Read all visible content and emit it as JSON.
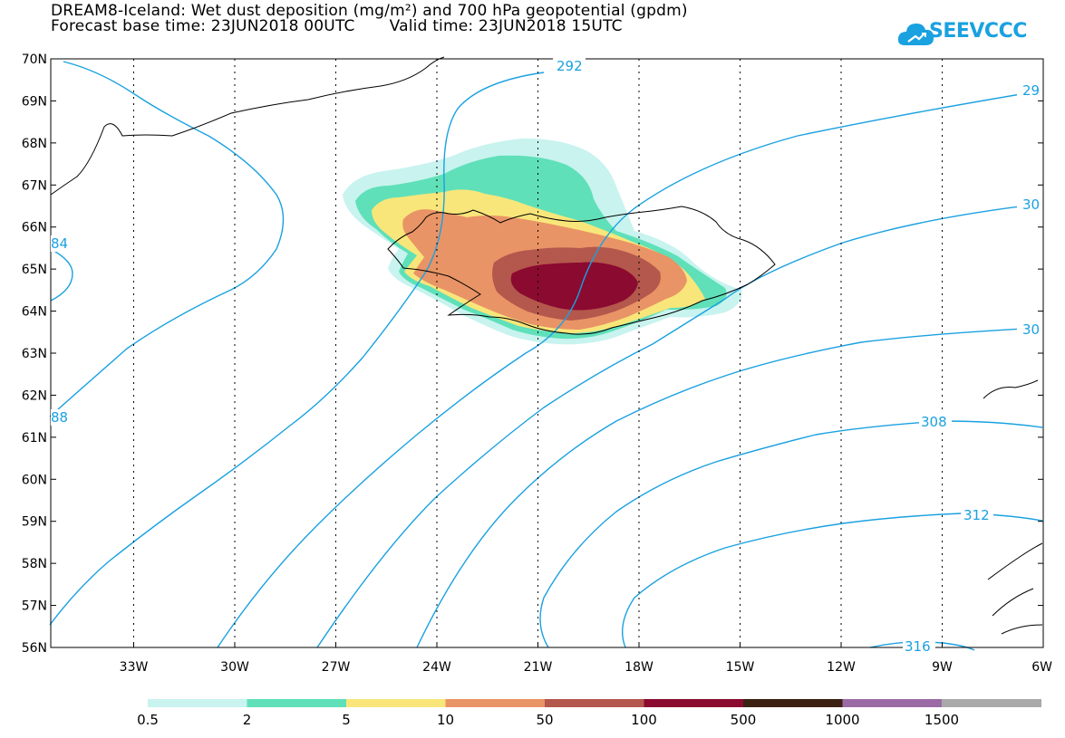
{
  "title": {
    "line1": "DREAM8-Iceland: Wet dust deposition (mg/m²) and 700 hPa geopotential (gpdm)",
    "base_time": "Forecast base time: 23JUN2018 00UTC",
    "valid_time": "Valid time: 23JUN2018 15UTC"
  },
  "logo": {
    "text": "SEEVCCC",
    "icon": "cloud-icon",
    "color": "#1aa1e0"
  },
  "map": {
    "lat_labels": [
      "70N",
      "69N",
      "68N",
      "67N",
      "66N",
      "65N",
      "64N",
      "63N",
      "62N",
      "61N",
      "60N",
      "59N",
      "58N",
      "57N",
      "56N"
    ],
    "lon_labels": [
      "33W",
      "30W",
      "27W",
      "24W",
      "21W",
      "18W",
      "15W",
      "12W",
      "9W",
      "6W"
    ],
    "contour_color": "#1aa1e0",
    "contour_labels": [
      "292",
      "29",
      "30",
      "30",
      "308",
      "312",
      "316",
      "84",
      "88"
    ]
  },
  "colorbar": {
    "colors": [
      "#c8f3ef",
      "#5fe0b9",
      "#f9e67a",
      "#e99466",
      "#b4574c",
      "#8b0a30",
      "#3b2212",
      "#9b6ba6",
      "#a9a9a9"
    ],
    "labels": [
      "0.5",
      "2",
      "5",
      "10",
      "50",
      "100",
      "500",
      "1000",
      "1500"
    ]
  }
}
